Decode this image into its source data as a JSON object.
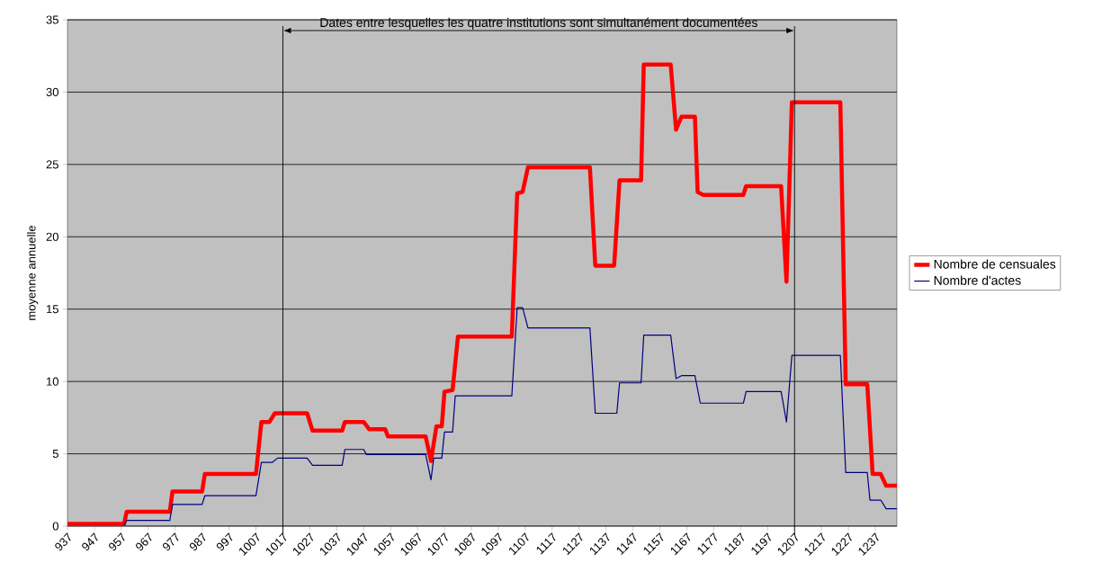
{
  "chart_data": {
    "type": "line",
    "ylabel": "moyenne annuelle",
    "annotations": [
      "Dates entre lesquelles les quatre institutions sont simultanément documentées"
    ],
    "xlim": [
      937,
      1245
    ],
    "xticks": [
      937,
      947,
      957,
      967,
      977,
      987,
      997,
      1007,
      1017,
      1027,
      1037,
      1047,
      1057,
      1067,
      1077,
      1087,
      1097,
      1107,
      1117,
      1127,
      1137,
      1147,
      1157,
      1167,
      1177,
      1187,
      1197,
      1207,
      1217,
      1227,
      1237
    ],
    "ylim": [
      0,
      35
    ],
    "yticks": [
      0,
      5,
      10,
      15,
      20,
      25,
      30,
      35
    ],
    "grid": "y",
    "legend": "right",
    "ref_lines": [
      {
        "axis": "x",
        "value": 1017,
        "color": "#000000"
      },
      {
        "axis": "x",
        "value": 1207,
        "color": "#000000"
      }
    ],
    "series": [
      {
        "name": "Nombre de censuales",
        "color": "#ff0000",
        "x": [
          937,
          958,
          959,
          975,
          976,
          987,
          988,
          1007,
          1009,
          1012,
          1014,
          1026,
          1028,
          1039,
          1040,
          1047,
          1049,
          1055,
          1056,
          1070,
          1072,
          1074,
          1076,
          1077,
          1080,
          1082,
          1102,
          1104,
          1106,
          1108,
          1131,
          1133,
          1140,
          1142,
          1150,
          1151,
          1161,
          1163,
          1165,
          1170,
          1171,
          1173,
          1188,
          1189,
          1202,
          1204,
          1206,
          1224,
          1226,
          1234,
          1236,
          1239,
          1241,
          1245
        ],
        "values": [
          0.15,
          0.15,
          1.0,
          1.0,
          2.4,
          2.4,
          3.6,
          3.6,
          7.2,
          7.2,
          7.8,
          7.8,
          6.6,
          6.6,
          7.2,
          7.2,
          6.7,
          6.7,
          6.2,
          6.2,
          4.5,
          6.9,
          6.9,
          9.3,
          9.4,
          13.1,
          13.1,
          23.0,
          23.1,
          24.8,
          24.8,
          18.0,
          18.0,
          23.9,
          23.9,
          31.9,
          31.9,
          27.4,
          28.3,
          28.3,
          23.1,
          22.9,
          22.9,
          23.5,
          23.5,
          16.9,
          29.3,
          29.3,
          9.8,
          9.8,
          3.6,
          3.6,
          2.8,
          2.8
        ]
      },
      {
        "name": "Nombre d'actes",
        "color": "#000080",
        "x": [
          958,
          959,
          975,
          976,
          987,
          988,
          1007,
          1009,
          1013,
          1015,
          1026,
          1028,
          1039,
          1040,
          1047,
          1048,
          1070,
          1072,
          1073,
          1076,
          1077,
          1080,
          1081,
          1102,
          1104,
          1106,
          1108,
          1131,
          1133,
          1141,
          1142,
          1150,
          1151,
          1161,
          1163,
          1165,
          1170,
          1172,
          1188,
          1189,
          1202,
          1204,
          1206,
          1224,
          1226,
          1234,
          1235,
          1239,
          1241,
          1245
        ],
        "values": [
          0.05,
          0.4,
          0.4,
          1.5,
          1.5,
          2.1,
          2.1,
          4.4,
          4.4,
          4.7,
          4.7,
          4.2,
          4.2,
          5.3,
          5.3,
          4.95,
          4.95,
          3.2,
          4.7,
          4.7,
          6.5,
          6.5,
          9.0,
          9.0,
          15.1,
          15.1,
          13.7,
          13.7,
          7.8,
          7.8,
          9.9,
          9.9,
          13.2,
          13.2,
          10.2,
          10.4,
          10.4,
          8.5,
          8.5,
          9.3,
          9.3,
          7.2,
          11.8,
          11.8,
          3.7,
          3.7,
          1.8,
          1.8,
          1.2,
          1.2
        ]
      }
    ]
  }
}
